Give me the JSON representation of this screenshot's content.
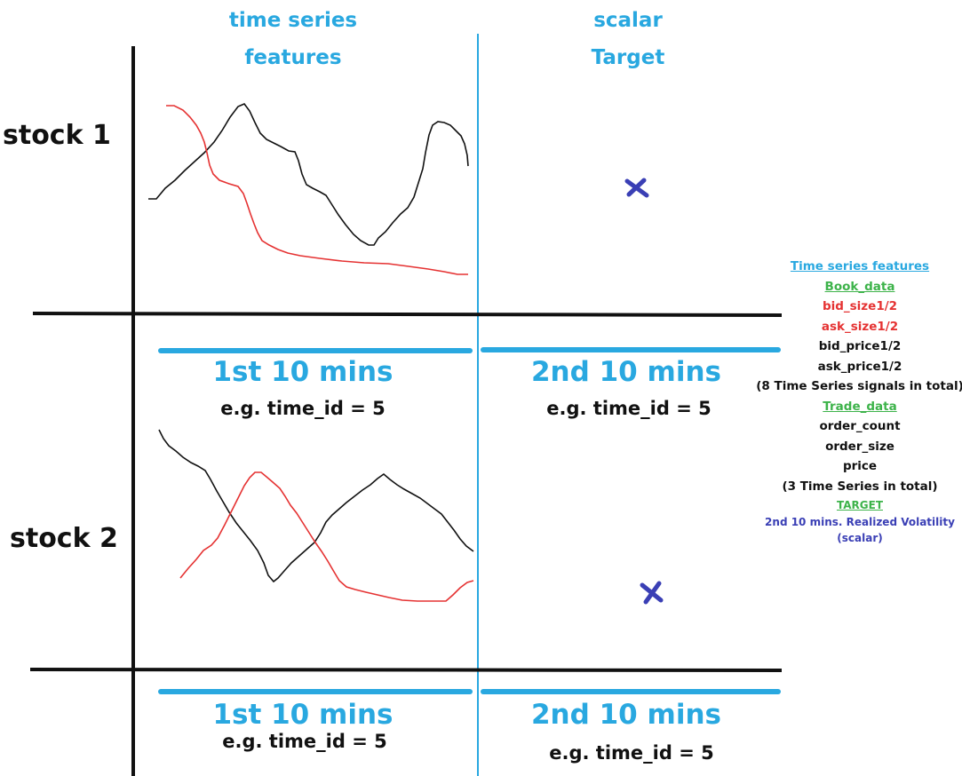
{
  "columns": {
    "left": [
      "time series",
      "features"
    ],
    "right": [
      "scalar",
      "Target"
    ]
  },
  "rows": [
    {
      "label": "stock 1",
      "left_segment": "1st 10 mins",
      "left_example": "e.g. time_id = 5",
      "right_segment": "2nd 10 mins",
      "right_example": "e.g. time_id = 5"
    },
    {
      "label": "stock 2",
      "left_segment": "1st 10 mins",
      "left_example": "e.g. time_id = 5",
      "right_segment": "2nd 10 mins",
      "right_example": "e.g. time_id = 5"
    }
  ],
  "legend": {
    "title": "Time series features",
    "book_heading": "Book_data",
    "book_red": [
      "bid_size1/2",
      "ask_size1/2"
    ],
    "book_black": [
      "bid_price1/2",
      "ask_price1/2"
    ],
    "book_total": "(8 Time Series signals in total)",
    "trade_heading": "Trade_data",
    "trade_items": [
      "order_count",
      "order_size",
      "price"
    ],
    "trade_total": "(3 Time Series in total)",
    "target_heading": "TARGET",
    "target_desc": "2nd 10 mins. Realized Volatility",
    "target_type": "(scalar)"
  },
  "colors": {
    "accent_blue": "#29a8e0",
    "series_black": "#111111",
    "series_red": "#e53232",
    "target_marker": "#3a3fb5",
    "legend_green": "#3db34a"
  },
  "marker_icon": "x-cross-icon"
}
